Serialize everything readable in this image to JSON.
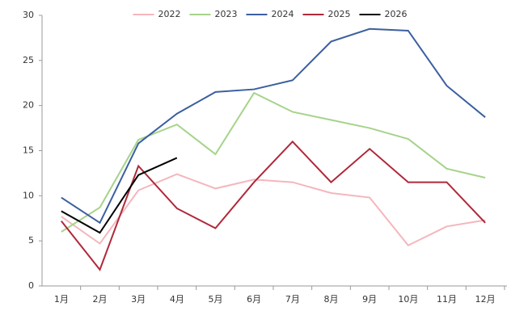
{
  "chart_data": {
    "type": "line",
    "categories": [
      "1月",
      "2月",
      "3月",
      "4月",
      "5月",
      "6月",
      "7月",
      "8月",
      "9月",
      "10月",
      "11月",
      "12月"
    ],
    "series": [
      {
        "name": "2022",
        "color": "#f4b6bd",
        "values": [
          7.7,
          4.7,
          10.6,
          12.4,
          10.8,
          11.8,
          11.5,
          10.3,
          9.8,
          4.5,
          6.6,
          7.3
        ]
      },
      {
        "name": "2023",
        "color": "#a6d38a",
        "values": [
          6.0,
          8.7,
          16.2,
          17.9,
          14.6,
          21.4,
          19.3,
          18.4,
          17.5,
          16.3,
          13.0,
          12.0
        ]
      },
      {
        "name": "2024",
        "color": "#3b5fa0",
        "values": [
          9.8,
          7.0,
          15.8,
          19.1,
          21.5,
          21.8,
          22.8,
          27.1,
          28.5,
          28.3,
          22.2,
          18.7
        ]
      },
      {
        "name": "2025",
        "color": "#b0283a",
        "values": [
          7.2,
          1.8,
          13.3,
          8.6,
          6.4,
          11.5,
          16.0,
          11.5,
          15.2,
          11.5,
          11.5,
          7.0
        ]
      },
      {
        "name": "2026",
        "color": "#000000",
        "values": [
          8.3,
          5.9,
          12.3,
          14.2,
          null,
          null,
          null,
          null,
          null,
          null,
          null,
          null
        ]
      }
    ],
    "ylim": [
      0,
      30
    ],
    "yticks": [
      0,
      5,
      10,
      15,
      20,
      25,
      30
    ],
    "grid": false,
    "legend": "top"
  }
}
